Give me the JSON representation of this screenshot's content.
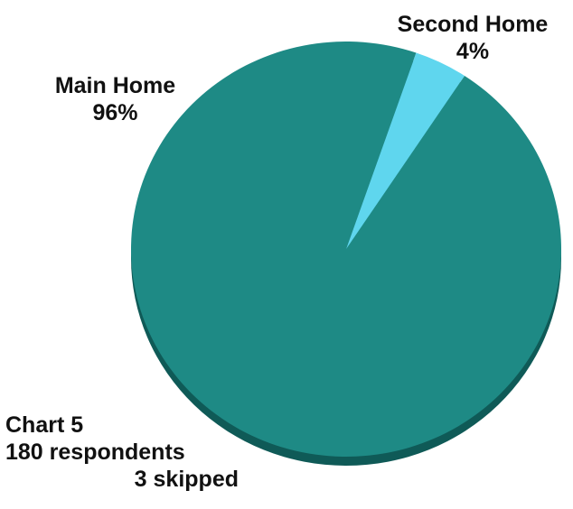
{
  "chart_data": {
    "type": "pie",
    "categories": [
      "Main Home",
      "Second Home"
    ],
    "values": [
      96,
      4
    ],
    "data_labels": [
      "96%",
      "4%"
    ],
    "colors": [
      "#1e8a85",
      "#5fd6ee"
    ],
    "note": [
      "Chart 5",
      "180 respondents",
      "3 skipped"
    ]
  }
}
